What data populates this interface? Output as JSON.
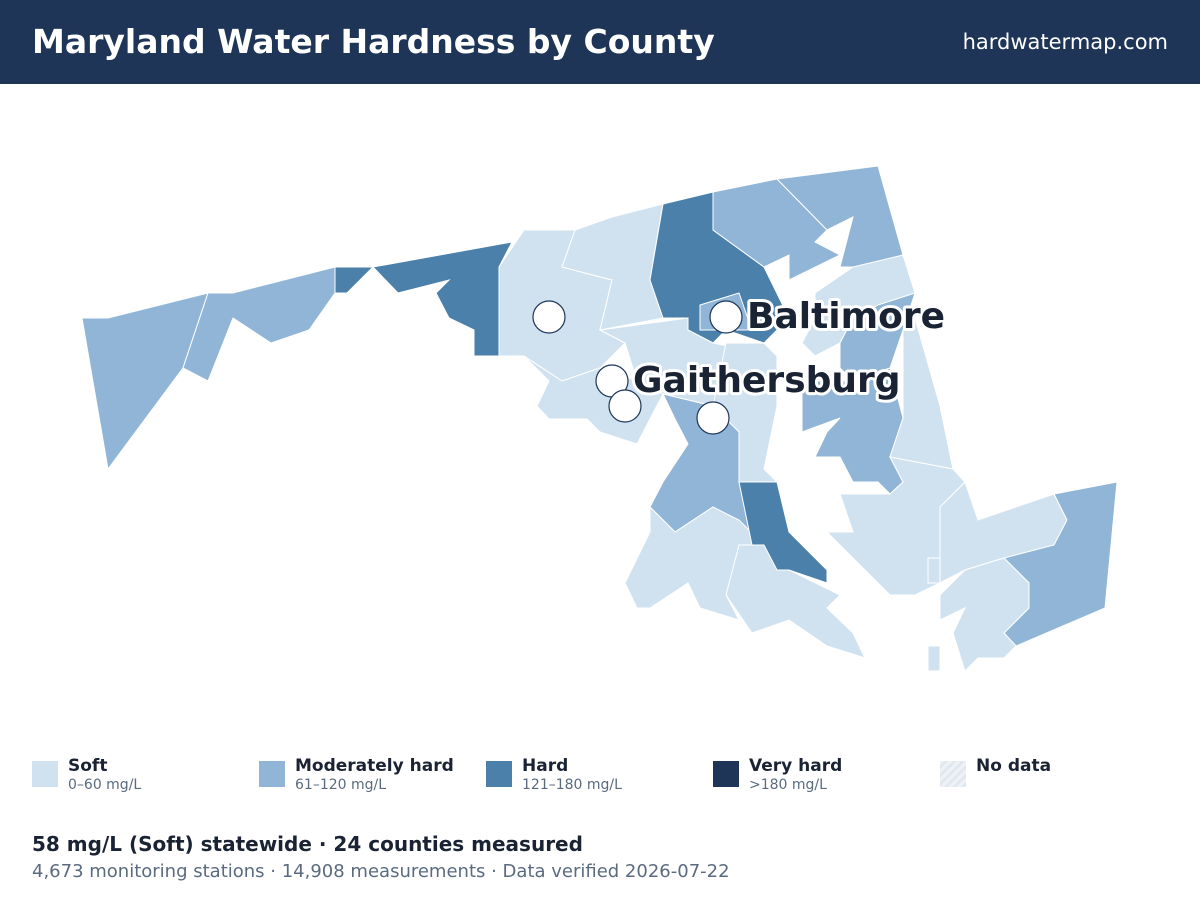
{
  "header": {
    "title": "Maryland Water Hardness by County",
    "site": "hardwatermap.com"
  },
  "cities": [
    {
      "name": "Baltimore"
    },
    {
      "name": "Gaithersburg"
    }
  ],
  "legend": [
    {
      "label": "Soft",
      "range": "0–60 mg/L"
    },
    {
      "label": "Moderately hard",
      "range": "61–120 mg/L"
    },
    {
      "label": "Hard",
      "range": "121–180 mg/L"
    },
    {
      "label": "Very hard",
      "range": ">180 mg/L"
    },
    {
      "label": "No data"
    }
  ],
  "summary": {
    "headline": "58 mg/L (Soft) statewide · 24 counties measured",
    "details": "4,673 monitoring stations · 14,908 measurements · Data verified 2026-07-22"
  }
}
